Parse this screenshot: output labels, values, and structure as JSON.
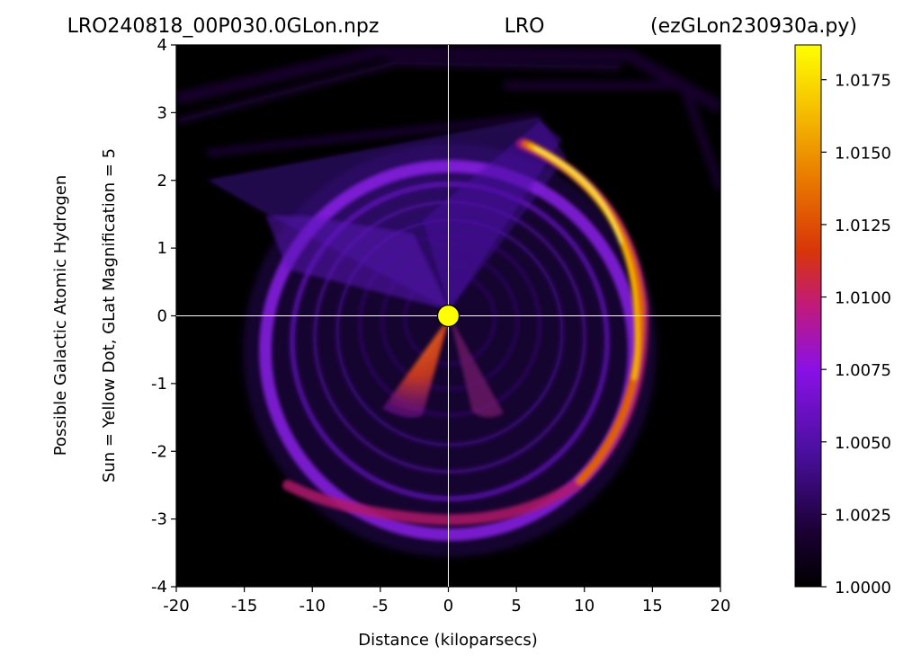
{
  "header": {
    "file_title": "LRO240818_00P030.0GLon.npz",
    "center_title": "LRO",
    "script_title": "(ezGLon230930a.py)"
  },
  "chart_data": {
    "type": "heatmap",
    "title": "LRO240818_00P030.0GLon.npz          LRO          (ezGLon230930a.py)",
    "xlabel": "Distance (kiloparsecs)",
    "ylabel_line1": "Possible Galactic Atomic Hydrogen",
    "ylabel_line2": "Sun = Yellow Dot, GLat Magnification = 5",
    "xlim": [
      -20,
      20
    ],
    "ylim": [
      -4,
      4
    ],
    "x_ticks": [
      -20,
      -15,
      -10,
      -5,
      0,
      5,
      10,
      15,
      20
    ],
    "x_tick_labels": [
      "-20",
      "-15",
      "-10",
      "-5",
      "0",
      "5",
      "10",
      "15",
      "20"
    ],
    "y_ticks": [
      -4,
      -3,
      -2,
      -1,
      0,
      1,
      2,
      3,
      4
    ],
    "y_tick_labels": [
      "-4",
      "-3",
      "-2",
      "-1",
      "0",
      "1",
      "2",
      "3",
      "4"
    ],
    "colormap": "gnuplot",
    "colorbar": {
      "min": 1.0,
      "max": 1.0187,
      "ticks": [
        1.0,
        1.0025,
        1.005,
        1.0075,
        1.01,
        1.0125,
        1.015,
        1.0175
      ],
      "tick_labels": [
        "1.0000",
        "1.0025",
        "1.0050",
        "1.0075",
        "1.0100",
        "1.0125",
        "1.0150",
        "1.0175"
      ]
    },
    "sun_marker": {
      "x": 0,
      "y": 0,
      "color": "#ffff00"
    },
    "crosshair": {
      "x": 0,
      "y": 0,
      "color": "#ffffff"
    }
  }
}
